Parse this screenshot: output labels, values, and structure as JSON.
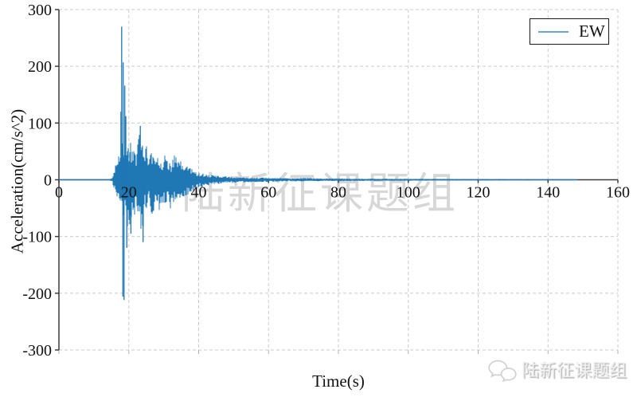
{
  "watermark_center": {
    "text": "陆新征课题组"
  },
  "watermark_corner": {
    "text": "陆新征课题组",
    "icon": "wechat-icon"
  },
  "legend": {
    "entries": [
      {
        "label": "EW",
        "color": "#6fa3cd"
      }
    ]
  },
  "chart_data": {
    "type": "line",
    "title": "",
    "xlabel": "Time(s)",
    "ylabel": "Acceleration(cm/s^2)",
    "xlim": [
      0,
      160
    ],
    "ylim": [
      -300,
      300
    ],
    "x_ticks": [
      0,
      20,
      40,
      60,
      80,
      100,
      120,
      140,
      160
    ],
    "y_ticks": [
      -300,
      -200,
      -100,
      0,
      100,
      200,
      300
    ],
    "grid": "dashed",
    "legend_position": "top-right",
    "series": [
      {
        "name": "EW",
        "color": "#1f77b4",
        "signal_start_s": 0,
        "signal_end_s": 148.3,
        "peak_acceleration": 270,
        "min_acceleration": -212,
        "envelope_t_pos_neg": [
          [
            0,
            0.6,
            0.6
          ],
          [
            14.5,
            0.8,
            0.8
          ],
          [
            15.2,
            4,
            4
          ],
          [
            15.8,
            18,
            15
          ],
          [
            16.2,
            35,
            30
          ],
          [
            16.8,
            42,
            38
          ],
          [
            17.3,
            45,
            42
          ],
          [
            17.8,
            60,
            55
          ],
          [
            18.2,
            80,
            70
          ],
          [
            18.6,
            75,
            80
          ],
          [
            19,
            70,
            85
          ],
          [
            19.5,
            60,
            90
          ],
          [
            20,
            65,
            75
          ],
          [
            20.5,
            70,
            95
          ],
          [
            21,
            55,
            75
          ],
          [
            21.5,
            50,
            70
          ],
          [
            22,
            52,
            62
          ],
          [
            22.5,
            70,
            55
          ],
          [
            23,
            88,
            60
          ],
          [
            23.5,
            78,
            95
          ],
          [
            24,
            60,
            105
          ],
          [
            24.5,
            85,
            60
          ],
          [
            25,
            62,
            55
          ],
          [
            25.5,
            52,
            45
          ],
          [
            26,
            64,
            48
          ],
          [
            26.5,
            52,
            68
          ],
          [
            27,
            58,
            88
          ],
          [
            27.5,
            48,
            55
          ],
          [
            28,
            42,
            48
          ],
          [
            28.5,
            54,
            65
          ],
          [
            29,
            46,
            42
          ],
          [
            29.5,
            38,
            46
          ],
          [
            30,
            42,
            50
          ],
          [
            31,
            46,
            42
          ],
          [
            32,
            32,
            52
          ],
          [
            33,
            44,
            38
          ],
          [
            34,
            38,
            36
          ],
          [
            35,
            32,
            30
          ],
          [
            36,
            27,
            32
          ],
          [
            37,
            29,
            26
          ],
          [
            38,
            20,
            22
          ],
          [
            39,
            16,
            19
          ],
          [
            40,
            14,
            15
          ],
          [
            41,
            12,
            13
          ],
          [
            42,
            11,
            11
          ],
          [
            43,
            9.5,
            10
          ],
          [
            44,
            8.5,
            9
          ],
          [
            45,
            8,
            8
          ],
          [
            46,
            7,
            7.5
          ],
          [
            48,
            6,
            6
          ],
          [
            50,
            5,
            5.5
          ],
          [
            52,
            4.5,
            5
          ],
          [
            55,
            4,
            4.5
          ],
          [
            58,
            3.8,
            4
          ],
          [
            60,
            3.5,
            3.8
          ],
          [
            65,
            3,
            3.2
          ],
          [
            70,
            3,
            3
          ],
          [
            75,
            2.6,
            2.6
          ],
          [
            80,
            2.4,
            2.4
          ],
          [
            85,
            2.2,
            2.2
          ],
          [
            90,
            2,
            2
          ],
          [
            95,
            1.9,
            1.9
          ],
          [
            100,
            1.8,
            1.8
          ],
          [
            105,
            1.6,
            1.6
          ],
          [
            110,
            1.5,
            1.5
          ],
          [
            115,
            1.4,
            1.4
          ],
          [
            120,
            1.3,
            1.3
          ],
          [
            125,
            1.2,
            1.2
          ],
          [
            130,
            1.1,
            1.1
          ],
          [
            135,
            1,
            1
          ],
          [
            140,
            0.9,
            0.9
          ],
          [
            145,
            0.8,
            0.8
          ],
          [
            148.3,
            0.7,
            0.7
          ]
        ],
        "key_peaks": [
          {
            "t": 17.75,
            "value": 120
          },
          {
            "t": 17.95,
            "value": 270
          },
          {
            "t": 18.3,
            "value": -206
          },
          {
            "t": 18.4,
            "value": 207
          },
          {
            "t": 18.65,
            "value": -212
          },
          {
            "t": 18.85,
            "value": 166
          },
          {
            "t": 19.15,
            "value": 112
          },
          {
            "t": 19.45,
            "value": -120
          },
          {
            "t": 20.6,
            "value": -95
          },
          {
            "t": 23.3,
            "value": 95
          },
          {
            "t": 24.1,
            "value": -110
          }
        ]
      }
    ]
  }
}
